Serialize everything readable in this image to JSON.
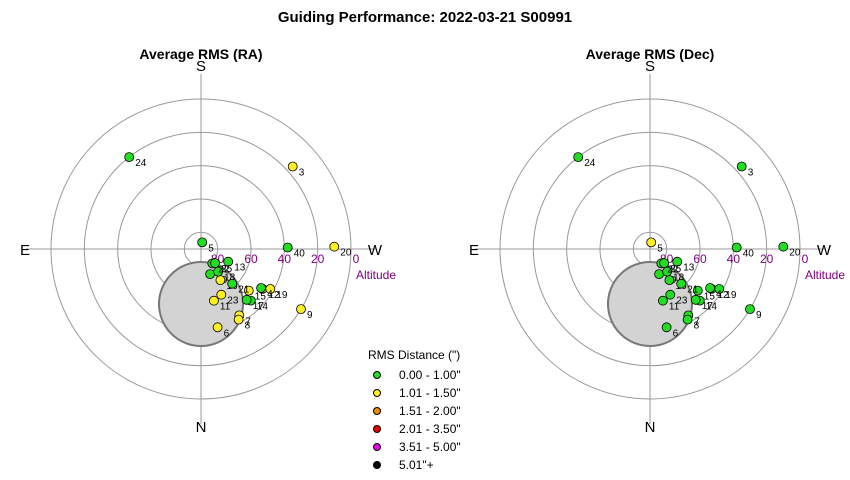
{
  "title": "Guiding Performance: 2022-03-21 S00991",
  "colors": {
    "bin0": "#22dd22",
    "bin1": "#ffee22",
    "bin2": "#ee8800",
    "bin3": "#ee0000",
    "bin4": "#ee00ee",
    "bin5": "#000000",
    "altitude": "#800080",
    "pole": "#d3d3d3"
  },
  "legend": {
    "title": "RMS Distance (\")",
    "items": [
      {
        "label": "0.00 - 1.00\"",
        "color": "#22dd22"
      },
      {
        "label": "1.01 - 1.50\"",
        "color": "#ffee22"
      },
      {
        "label": "1.51 - 2.00\"",
        "color": "#ee8800"
      },
      {
        "label": "2.01 - 3.50\"",
        "color": "#ee0000"
      },
      {
        "label": "3.51 - 5.00\"",
        "color": "#ee00ee"
      },
      {
        "label": "5.01\"+",
        "color": "#000000"
      }
    ]
  },
  "chart_data": [
    {
      "type": "scatter",
      "title": "Average RMS (RA)",
      "directions": {
        "top": "S",
        "bottom": "N",
        "left": "E",
        "right": "W"
      },
      "altitude_label": "Altitude",
      "altitude_ticks": [
        "80",
        "60",
        "40",
        "20",
        "0"
      ],
      "points": [
        {
          "label": "3",
          "alt": 16,
          "az": 48,
          "color": "#ffee22"
        },
        {
          "label": "5",
          "alt": 86,
          "az": 10,
          "color": "#22dd22"
        },
        {
          "label": "6",
          "alt": 42,
          "az": 168,
          "color": "#ffee22"
        },
        {
          "label": "7",
          "alt": 44,
          "az": 150,
          "color": "#ffee22"
        },
        {
          "label": "8",
          "alt": 42,
          "az": 152,
          "color": "#ffee22"
        },
        {
          "label": "9",
          "alt": 20,
          "az": 121,
          "color": "#ffee22"
        },
        {
          "label": "10",
          "alt": 74,
          "az": 160,
          "color": "#22dd22"
        },
        {
          "label": "11",
          "alt": 58,
          "az": 166,
          "color": "#ffee22"
        },
        {
          "label": "12",
          "alt": 46,
          "az": 123,
          "color": "#ffee22"
        },
        {
          "label": "13",
          "alt": 72,
          "az": 115,
          "color": "#22dd22"
        },
        {
          "label": "14",
          "alt": 47,
          "az": 136,
          "color": "#22dd22"
        },
        {
          "label": "15",
          "alt": 52,
          "az": 131,
          "color": "#ffee22"
        },
        {
          "label": "16",
          "alt": 68,
          "az": 148,
          "color": "#ffee22"
        },
        {
          "label": "17",
          "alt": 49,
          "az": 138,
          "color": "#22dd22"
        },
        {
          "label": "18",
          "alt": 73,
          "az": 143,
          "color": "#22dd22"
        },
        {
          "label": "19",
          "alt": 42,
          "az": 120,
          "color": "#ffee22"
        },
        {
          "label": "20",
          "alt": 10,
          "az": 89,
          "color": "#ffee22"
        },
        {
          "label": "21",
          "alt": 62,
          "az": 138,
          "color": "#22dd22"
        },
        {
          "label": "22",
          "alt": 79,
          "az": 142,
          "color": "#22dd22"
        },
        {
          "label": "23",
          "alt": 60,
          "az": 156,
          "color": "#ffee22"
        },
        {
          "label": "24",
          "alt": 20,
          "az": 322,
          "color": "#22dd22"
        },
        {
          "label": "25",
          "alt": 78,
          "az": 135,
          "color": "#22dd22"
        },
        {
          "label": "4",
          "alt": 47,
          "az": 123,
          "color": "#22dd22"
        },
        {
          "label": "40",
          "alt": 38,
          "az": 89,
          "color": "#22dd22"
        }
      ]
    },
    {
      "type": "scatter",
      "title": "Average RMS (Dec)",
      "directions": {
        "top": "S",
        "bottom": "N",
        "left": "E",
        "right": "W"
      },
      "altitude_label": "Altitude",
      "altitude_ticks": [
        "80",
        "60",
        "40",
        "20",
        "0"
      ],
      "points": [
        {
          "label": "3",
          "alt": 16,
          "az": 48,
          "color": "#22dd22"
        },
        {
          "label": "5",
          "alt": 86,
          "az": 10,
          "color": "#ffee22"
        },
        {
          "label": "6",
          "alt": 42,
          "az": 168,
          "color": "#22dd22"
        },
        {
          "label": "7",
          "alt": 44,
          "az": 150,
          "color": "#22dd22"
        },
        {
          "label": "8",
          "alt": 42,
          "az": 152,
          "color": "#22dd22"
        },
        {
          "label": "9",
          "alt": 20,
          "az": 121,
          "color": "#22dd22"
        },
        {
          "label": "10",
          "alt": 74,
          "az": 160,
          "color": "#22dd22"
        },
        {
          "label": "11",
          "alt": 58,
          "az": 166,
          "color": "#22dd22"
        },
        {
          "label": "12",
          "alt": 46,
          "az": 123,
          "color": "#22dd22"
        },
        {
          "label": "13",
          "alt": 72,
          "az": 115,
          "color": "#22dd22"
        },
        {
          "label": "14",
          "alt": 47,
          "az": 136,
          "color": "#22dd22"
        },
        {
          "label": "15",
          "alt": 52,
          "az": 131,
          "color": "#22dd22"
        },
        {
          "label": "16",
          "alt": 68,
          "az": 148,
          "color": "#22dd22"
        },
        {
          "label": "17",
          "alt": 49,
          "az": 138,
          "color": "#22dd22"
        },
        {
          "label": "18",
          "alt": 73,
          "az": 143,
          "color": "#22dd22"
        },
        {
          "label": "19",
          "alt": 42,
          "az": 120,
          "color": "#22dd22"
        },
        {
          "label": "20",
          "alt": 10,
          "az": 89,
          "color": "#22dd22"
        },
        {
          "label": "21",
          "alt": 62,
          "az": 138,
          "color": "#22dd22"
        },
        {
          "label": "22",
          "alt": 79,
          "az": 142,
          "color": "#22dd22"
        },
        {
          "label": "23",
          "alt": 60,
          "az": 156,
          "color": "#22dd22"
        },
        {
          "label": "24",
          "alt": 20,
          "az": 322,
          "color": "#22dd22"
        },
        {
          "label": "25",
          "alt": 78,
          "az": 135,
          "color": "#22dd22"
        },
        {
          "label": "4",
          "alt": 47,
          "az": 123,
          "color": "#22dd22"
        },
        {
          "label": "40",
          "alt": 38,
          "az": 89,
          "color": "#22dd22"
        }
      ]
    }
  ]
}
